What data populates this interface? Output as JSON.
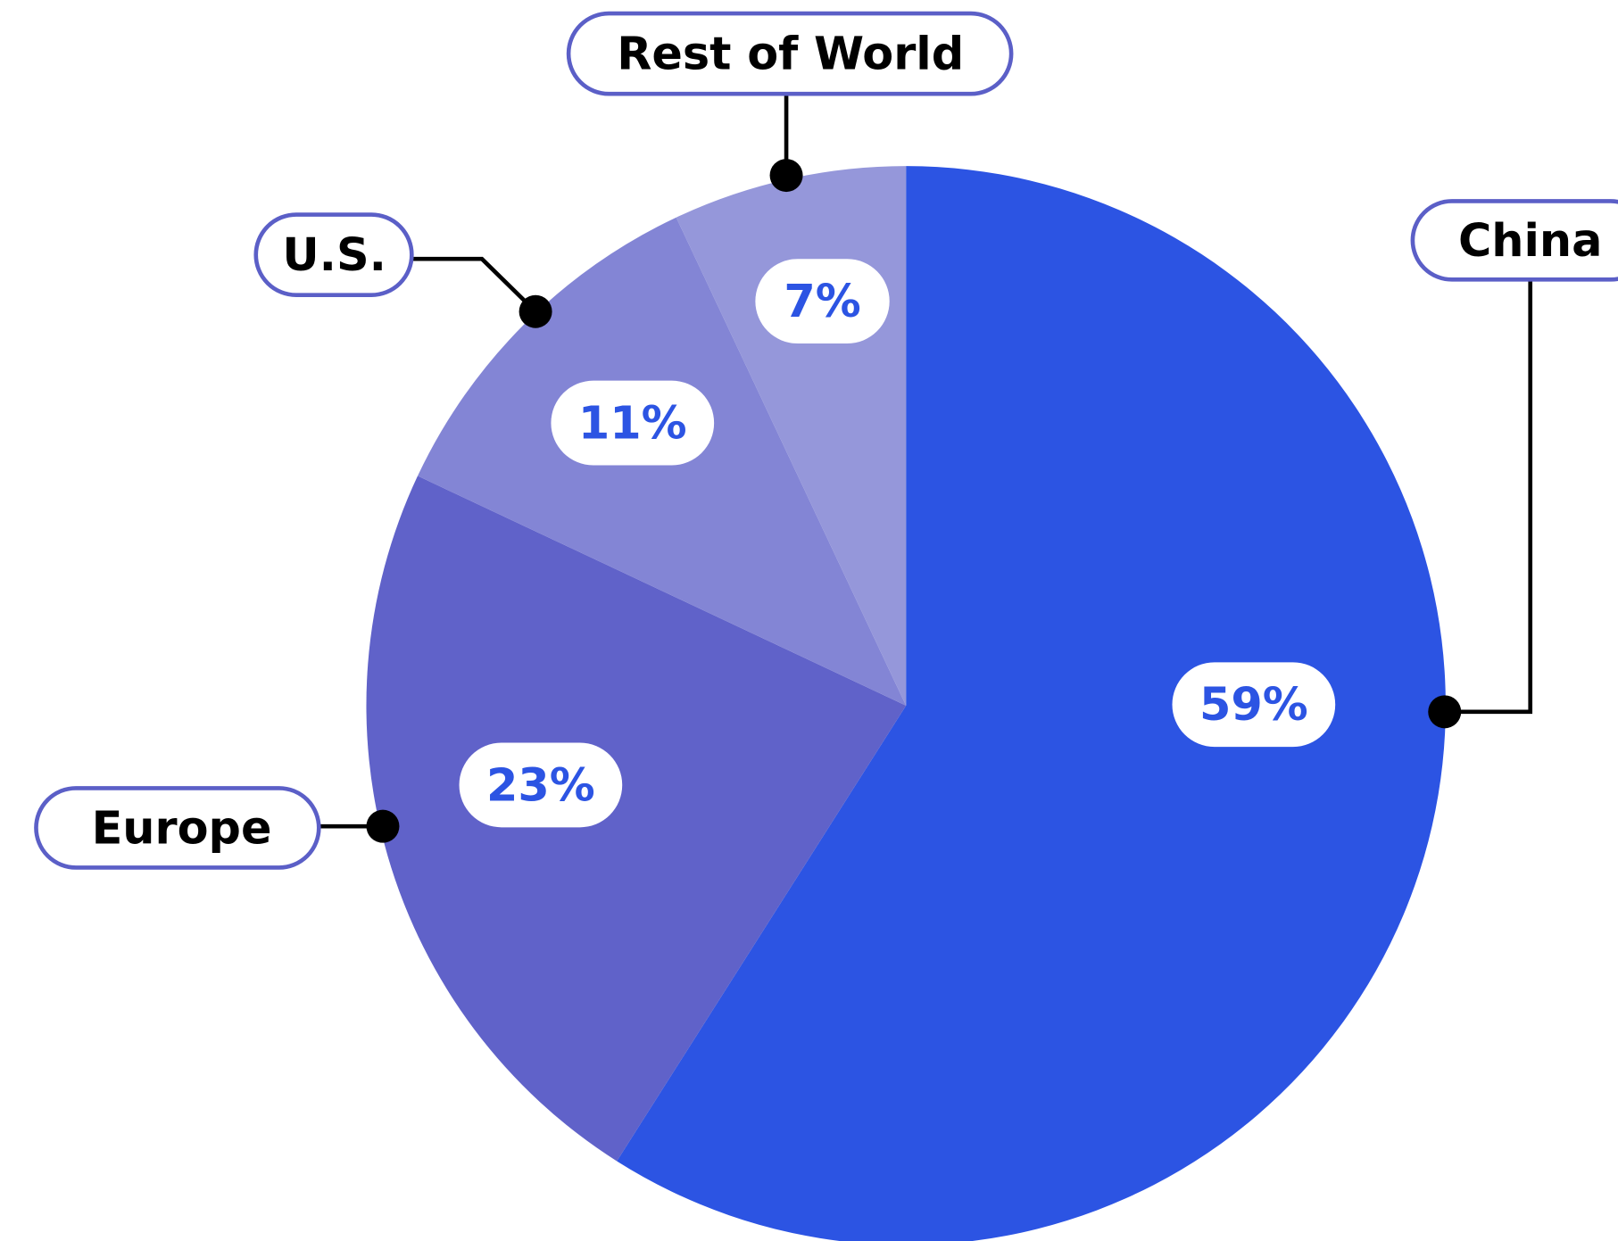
{
  "chart_data": {
    "type": "pie",
    "categories": [
      "China",
      "Europe",
      "U.S.",
      "Rest of World"
    ],
    "values": [
      59,
      23,
      11,
      7
    ],
    "value_labels": [
      "59%",
      "23%",
      "11%",
      "7%"
    ],
    "colors": [
      "#2c54e3",
      "#6062c9",
      "#8385d5",
      "#9597da"
    ]
  }
}
